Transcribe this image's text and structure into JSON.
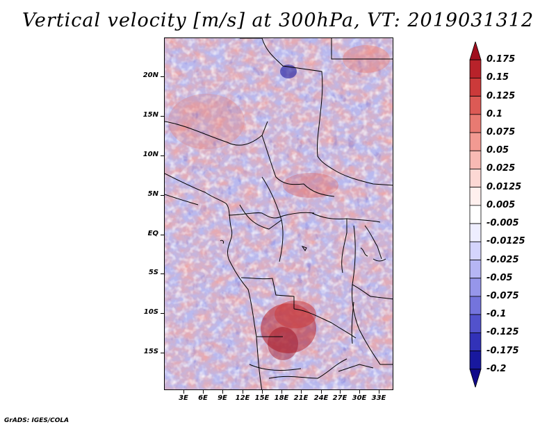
{
  "title": "Vertical velocity [m/s] at 300hPa, VT: 2019031312",
  "map": {
    "region": "Central Africa",
    "latitude_labels": [
      "20N",
      "15N",
      "10N",
      "5N",
      "EQ",
      "5S",
      "10S",
      "15S"
    ],
    "longitude_labels": [
      "3E",
      "6E",
      "9E",
      "12E",
      "15E",
      "18E",
      "21E",
      "24E",
      "27E",
      "30E",
      "33E"
    ]
  },
  "colorbar": {
    "levels": [
      "0.175",
      "0.15",
      "0.125",
      "0.1",
      "0.075",
      "0.05",
      "0.025",
      "0.0125",
      "0.005",
      "-0.005",
      "-0.0125",
      "-0.025",
      "-0.05",
      "-0.075",
      "-0.1",
      "-0.125",
      "-0.175",
      "-0.2"
    ],
    "colors": [
      "#a00f1e",
      "#b8222a",
      "#cc3a3a",
      "#dc5a55",
      "#e87a72",
      "#f29a92",
      "#f8bab4",
      "#fcd8d4",
      "#fff0ee",
      "#ffffff",
      "#eeeeff",
      "#d4d4fc",
      "#b6b6f4",
      "#9696ea",
      "#7474dc",
      "#5252cc",
      "#3232b8",
      "#18189e",
      "#100a8a"
    ]
  },
  "footer": "GrADS: IGES/COLA"
}
